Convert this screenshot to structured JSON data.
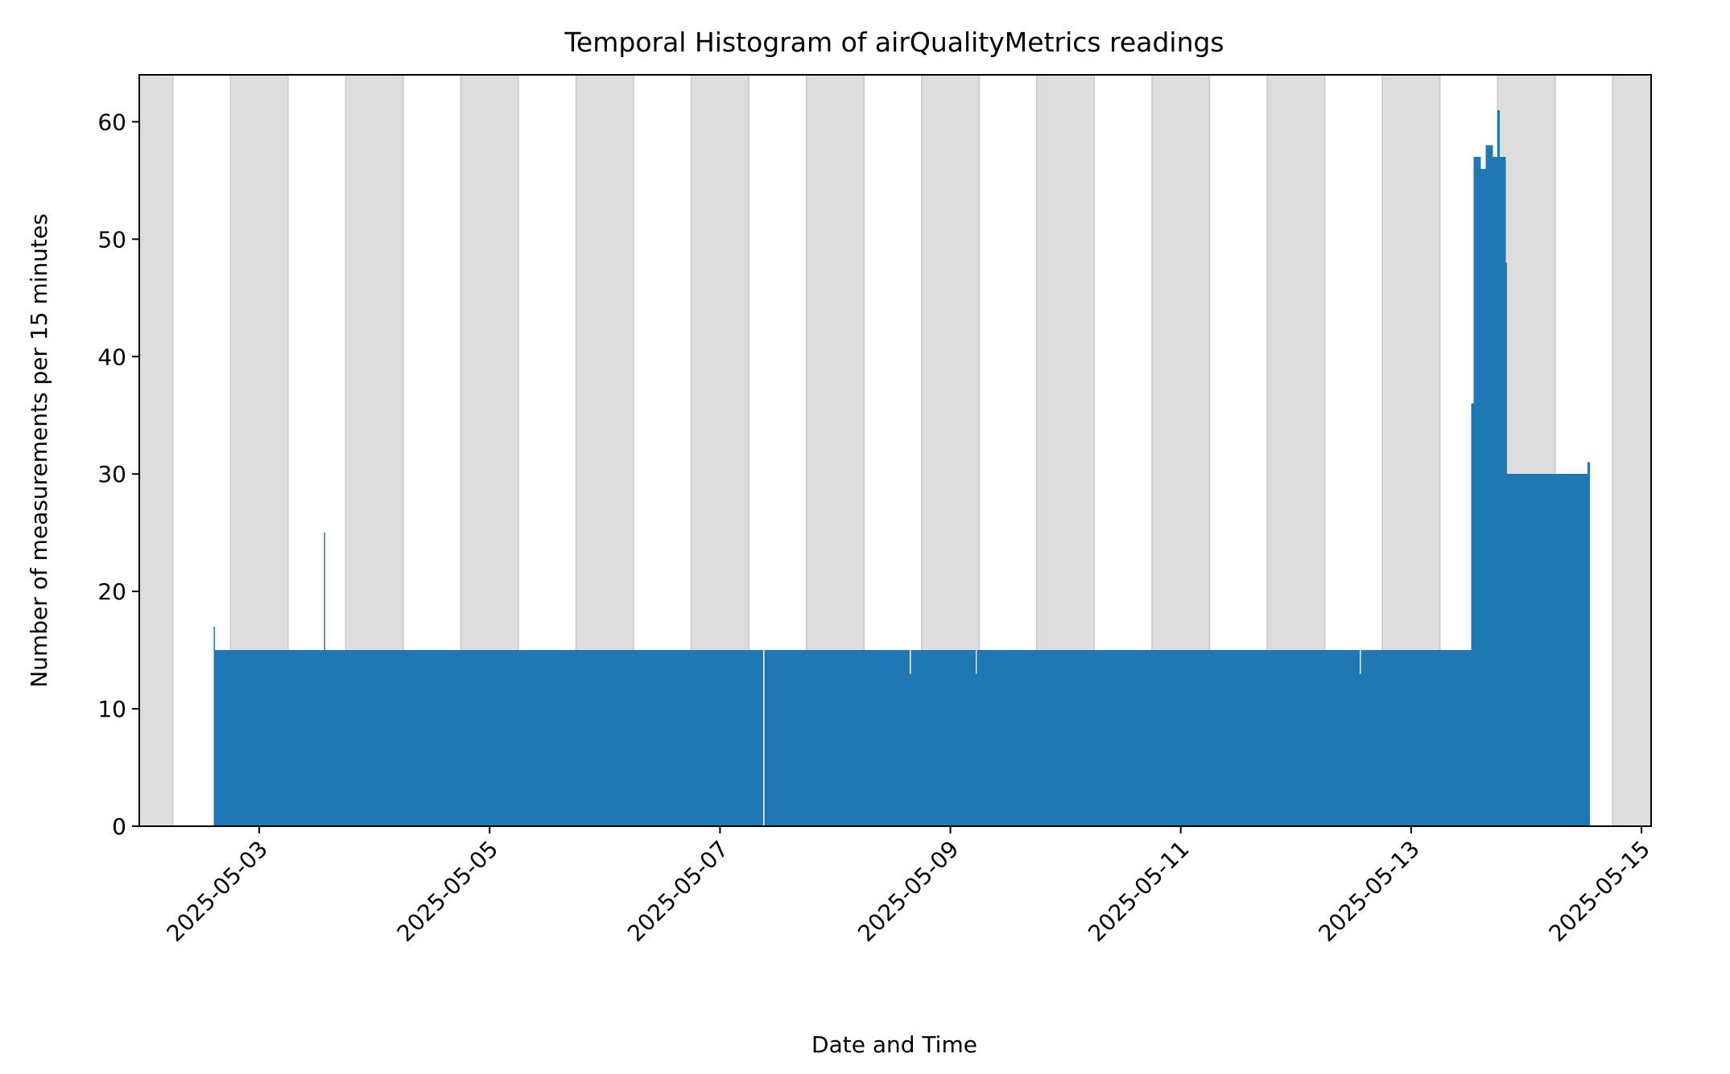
{
  "chart_data": {
    "type": "bar",
    "title": "Temporal Histogram of airQualityMetrics readings",
    "xlabel": "Date and Time",
    "ylabel": "Number of measurements per 15 minutes",
    "bin_minutes": 15,
    "xlim": [
      "2025-05-01T23:00",
      "2025-05-15T02:00"
    ],
    "ylim": [
      0,
      64
    ],
    "yticks": [
      0,
      10,
      20,
      30,
      40,
      50,
      60
    ],
    "xticks": [
      "2025-05-03",
      "2025-05-05",
      "2025-05-07",
      "2025-05-09",
      "2025-05-11",
      "2025-05-13",
      "2025-05-15"
    ],
    "bar_color": "#1f77b4",
    "shading_color": "#dddddd",
    "night_shading": [
      [
        "2025-05-01T18:00",
        "2025-05-02T06:00"
      ],
      [
        "2025-05-02T18:00",
        "2025-05-03T06:00"
      ],
      [
        "2025-05-03T18:00",
        "2025-05-04T06:00"
      ],
      [
        "2025-05-04T18:00",
        "2025-05-05T06:00"
      ],
      [
        "2025-05-05T18:00",
        "2025-05-06T06:00"
      ],
      [
        "2025-05-06T18:00",
        "2025-05-07T06:00"
      ],
      [
        "2025-05-07T18:00",
        "2025-05-08T06:00"
      ],
      [
        "2025-05-08T18:00",
        "2025-05-09T06:00"
      ],
      [
        "2025-05-09T18:00",
        "2025-05-10T06:00"
      ],
      [
        "2025-05-10T18:00",
        "2025-05-11T06:00"
      ],
      [
        "2025-05-11T18:00",
        "2025-05-12T06:00"
      ],
      [
        "2025-05-12T18:00",
        "2025-05-13T06:00"
      ],
      [
        "2025-05-13T18:00",
        "2025-05-14T06:00"
      ],
      [
        "2025-05-14T18:00",
        "2025-05-15T06:00"
      ]
    ],
    "series": [
      {
        "segments": [
          {
            "start": "2025-05-02T14:30",
            "end": "2025-05-02T14:45",
            "value": 17
          },
          {
            "start": "2025-05-02T14:45",
            "end": "2025-05-03T13:30",
            "value": 15
          },
          {
            "start": "2025-05-03T13:30",
            "end": "2025-05-03T13:45",
            "value": 25
          },
          {
            "start": "2025-05-03T13:45",
            "end": "2025-05-07T09:00",
            "value": 15
          },
          {
            "start": "2025-05-07T09:15",
            "end": "2025-05-08T15:30",
            "value": 15
          },
          {
            "start": "2025-05-08T15:30",
            "end": "2025-05-08T15:45",
            "value": 13
          },
          {
            "start": "2025-05-08T15:45",
            "end": "2025-05-09T05:15",
            "value": 15
          },
          {
            "start": "2025-05-09T05:15",
            "end": "2025-05-09T05:30",
            "value": 13
          },
          {
            "start": "2025-05-09T05:30",
            "end": "2025-05-12T13:15",
            "value": 15
          },
          {
            "start": "2025-05-12T13:15",
            "end": "2025-05-12T13:30",
            "value": 13
          },
          {
            "start": "2025-05-12T13:30",
            "end": "2025-05-13T12:30",
            "value": 15
          },
          {
            "start": "2025-05-13T12:30",
            "end": "2025-05-13T13:00",
            "value": 36
          },
          {
            "start": "2025-05-13T13:00",
            "end": "2025-05-13T14:30",
            "value": 57
          },
          {
            "start": "2025-05-13T14:30",
            "end": "2025-05-13T15:30",
            "value": 56
          },
          {
            "start": "2025-05-13T15:30",
            "end": "2025-05-13T17:00",
            "value": 58
          },
          {
            "start": "2025-05-13T17:00",
            "end": "2025-05-13T18:00",
            "value": 57
          },
          {
            "start": "2025-05-13T18:00",
            "end": "2025-05-13T18:30",
            "value": 61
          },
          {
            "start": "2025-05-13T18:30",
            "end": "2025-05-13T19:45",
            "value": 57
          },
          {
            "start": "2025-05-13T19:45",
            "end": "2025-05-13T20:00",
            "value": 48
          },
          {
            "start": "2025-05-13T20:00",
            "end": "2025-05-14T12:45",
            "value": 30
          },
          {
            "start": "2025-05-14T12:45",
            "end": "2025-05-14T13:15",
            "value": 31
          }
        ]
      }
    ]
  }
}
